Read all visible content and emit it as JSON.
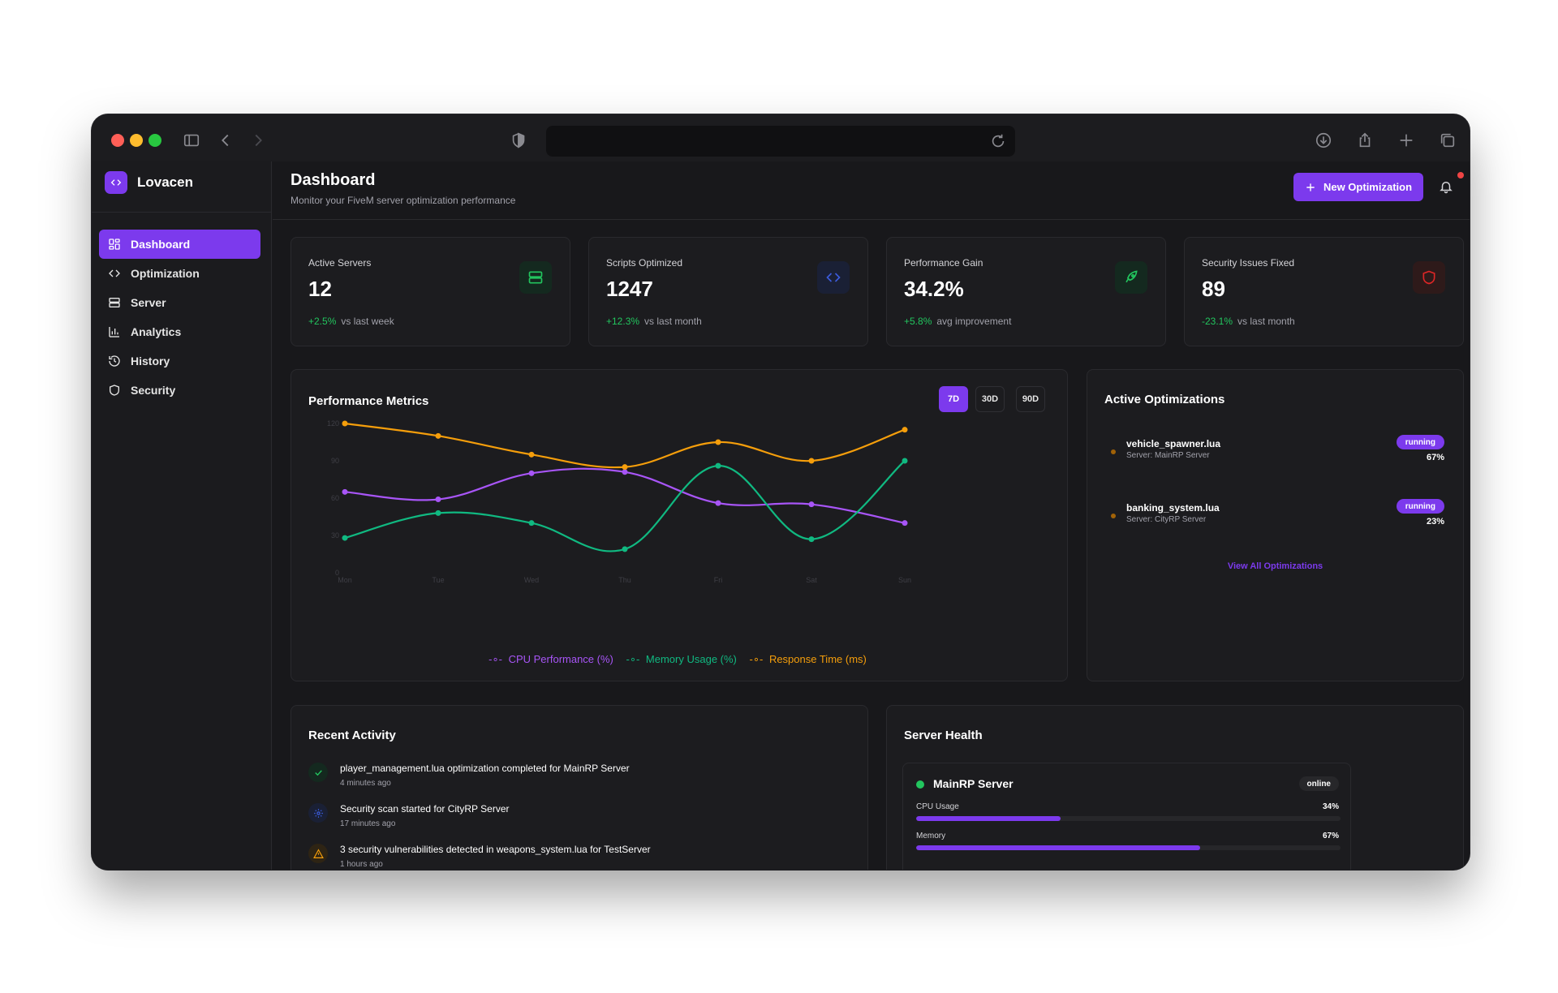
{
  "brand": {
    "name": "Lovacen"
  },
  "sidebar": {
    "items": [
      {
        "label": "Dashboard",
        "icon": "grid-icon",
        "active": true
      },
      {
        "label": "Optimization",
        "icon": "code-icon"
      },
      {
        "label": "Server",
        "icon": "server-icon"
      },
      {
        "label": "Analytics",
        "icon": "bar-chart-icon"
      },
      {
        "label": "History",
        "icon": "history-icon"
      },
      {
        "label": "Security",
        "icon": "shield-icon"
      }
    ]
  },
  "header": {
    "title": "Dashboard",
    "subtitle": "Monitor your FiveM server optimization performance",
    "new_button": "New Optimization"
  },
  "stats": [
    {
      "label": "Active Servers",
      "value": "12",
      "delta": "+2.5%",
      "note": "vs last week",
      "delta_color": "#22c55e",
      "icon": "server-icon",
      "icon_color": "#22c55e",
      "icon_bg": "#14291f"
    },
    {
      "label": "Scripts Optimized",
      "value": "1247",
      "delta": "+12.3%",
      "note": "vs last month",
      "delta_color": "#22c55e",
      "icon": "code-icon",
      "icon_color": "#3b5bdb",
      "icon_bg": "#1a2035"
    },
    {
      "label": "Performance Gain",
      "value": "34.2%",
      "delta": "+5.8%",
      "note": "avg improvement",
      "delta_color": "#22c55e",
      "icon": "rocket-icon",
      "icon_color": "#22c55e",
      "icon_bg": "#14291f"
    },
    {
      "label": "Security Issues Fixed",
      "value": "89",
      "delta": "-23.1%",
      "note": "vs last month",
      "delta_color": "#22c55e",
      "icon": "shield-icon",
      "icon_color": "#dc2626",
      "icon_bg": "#2e1a1a"
    }
  ],
  "performance": {
    "title": "Performance Metrics",
    "ranges": [
      "7D",
      "30D",
      "90D"
    ],
    "active_range": "7D"
  },
  "chart_data": {
    "type": "line",
    "x": [
      "Mon",
      "Tue",
      "Wed",
      "Thu",
      "Fri",
      "Sat",
      "Sun"
    ],
    "ylim": [
      0,
      120
    ],
    "yticks": [
      "0",
      "30",
      "60",
      "90",
      "120"
    ],
    "series": [
      {
        "name": "CPU Performance (%)",
        "color": "#a855f7",
        "values": [
          65,
          59,
          80,
          81,
          56,
          55,
          40
        ]
      },
      {
        "name": "Memory Usage (%)",
        "color": "#10b981",
        "values": [
          28,
          48,
          40,
          19,
          86,
          27,
          90
        ]
      },
      {
        "name": "Response Time (ms)",
        "color": "#f59e0b",
        "values": [
          120,
          110,
          95,
          85,
          105,
          90,
          115
        ]
      }
    ]
  },
  "active_optimizations": {
    "title": "Active Optimizations",
    "items": [
      {
        "name": "vehicle_spawner.lua",
        "server": "Server: MainRP Server",
        "status": "running",
        "progress": "67%"
      },
      {
        "name": "banking_system.lua",
        "server": "Server: CityRP Server",
        "status": "running",
        "progress": "23%"
      }
    ],
    "view_all": "View All Optimizations"
  },
  "recent_activity": {
    "title": "Recent Activity",
    "items": [
      {
        "text": "player_management.lua optimization completed for MainRP Server",
        "time": "4 minutes ago",
        "icon": "check-icon",
        "color": "#22c55e",
        "bg": "#14291f"
      },
      {
        "text": "Security scan started for CityRP Server",
        "time": "17 minutes ago",
        "icon": "gear-icon",
        "color": "#3b5bdb",
        "bg": "#1a2035"
      },
      {
        "text": "3 security vulnerabilities detected in weapons_system.lua for TestServer",
        "time": "1 hours ago",
        "icon": "warning-icon",
        "color": "#f59e0b",
        "bg": "#2e2414"
      }
    ]
  },
  "server_health": {
    "title": "Server Health",
    "server": {
      "name": "MainRP Server",
      "status": "online",
      "metrics": [
        {
          "label": "CPU Usage",
          "value": "34%",
          "level": 0.34
        },
        {
          "label": "Memory",
          "value": "67%",
          "level": 0.67
        }
      ]
    }
  }
}
